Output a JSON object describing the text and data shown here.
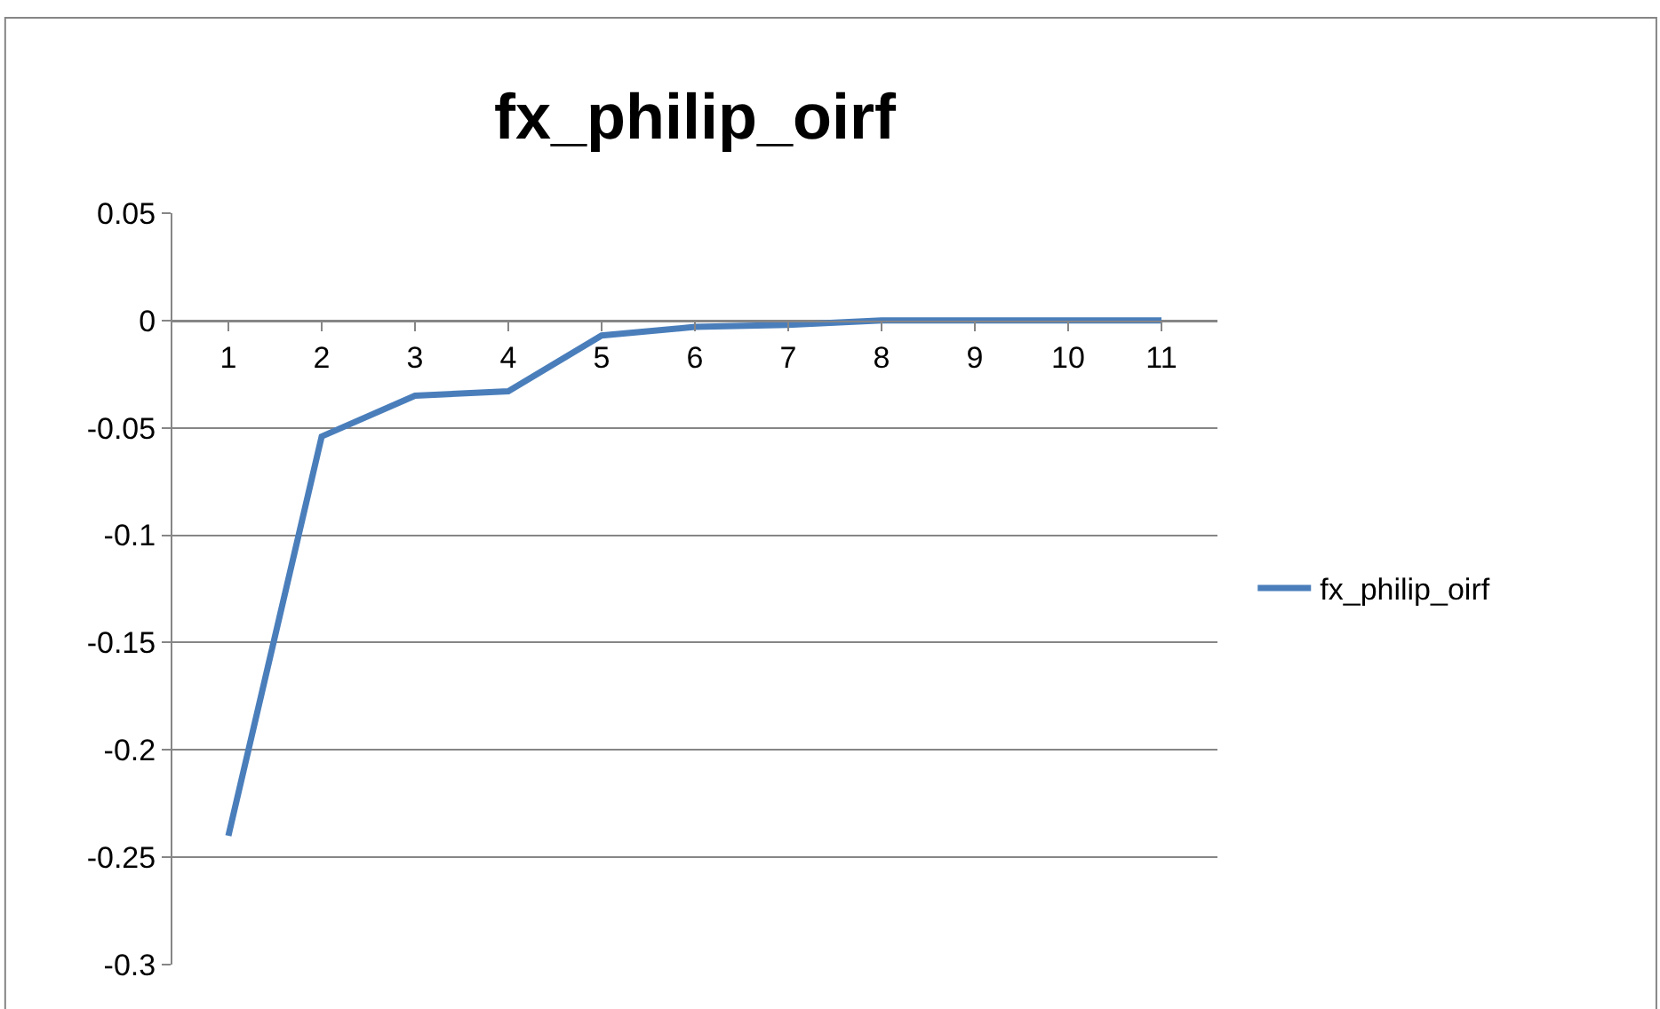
{
  "chart_data": {
    "type": "line",
    "title": "fx_philip_oirf",
    "categories": [
      "1",
      "2",
      "3",
      "4",
      "5",
      "6",
      "7",
      "8",
      "9",
      "10",
      "11"
    ],
    "series": [
      {
        "name": "fx_philip_oirf",
        "color": "#4a7ebb",
        "values": [
          -0.24,
          -0.054,
          -0.035,
          -0.033,
          -0.007,
          -0.003,
          -0.002,
          0,
          0,
          0,
          0
        ]
      }
    ],
    "ylim": [
      -0.3,
      0.05
    ],
    "yticks": [
      {
        "value": -0.3,
        "label": "-0.3"
      },
      {
        "value": -0.25,
        "label": "-0.25"
      },
      {
        "value": -0.2,
        "label": "-0.2"
      },
      {
        "value": -0.15,
        "label": "-0.15"
      },
      {
        "value": -0.1,
        "label": "-0.1"
      },
      {
        "value": -0.05,
        "label": "-0.05"
      },
      0,
      0.05
    ],
    "grid": "y",
    "legend": "right",
    "marker": "none",
    "line_style": "solid"
  }
}
